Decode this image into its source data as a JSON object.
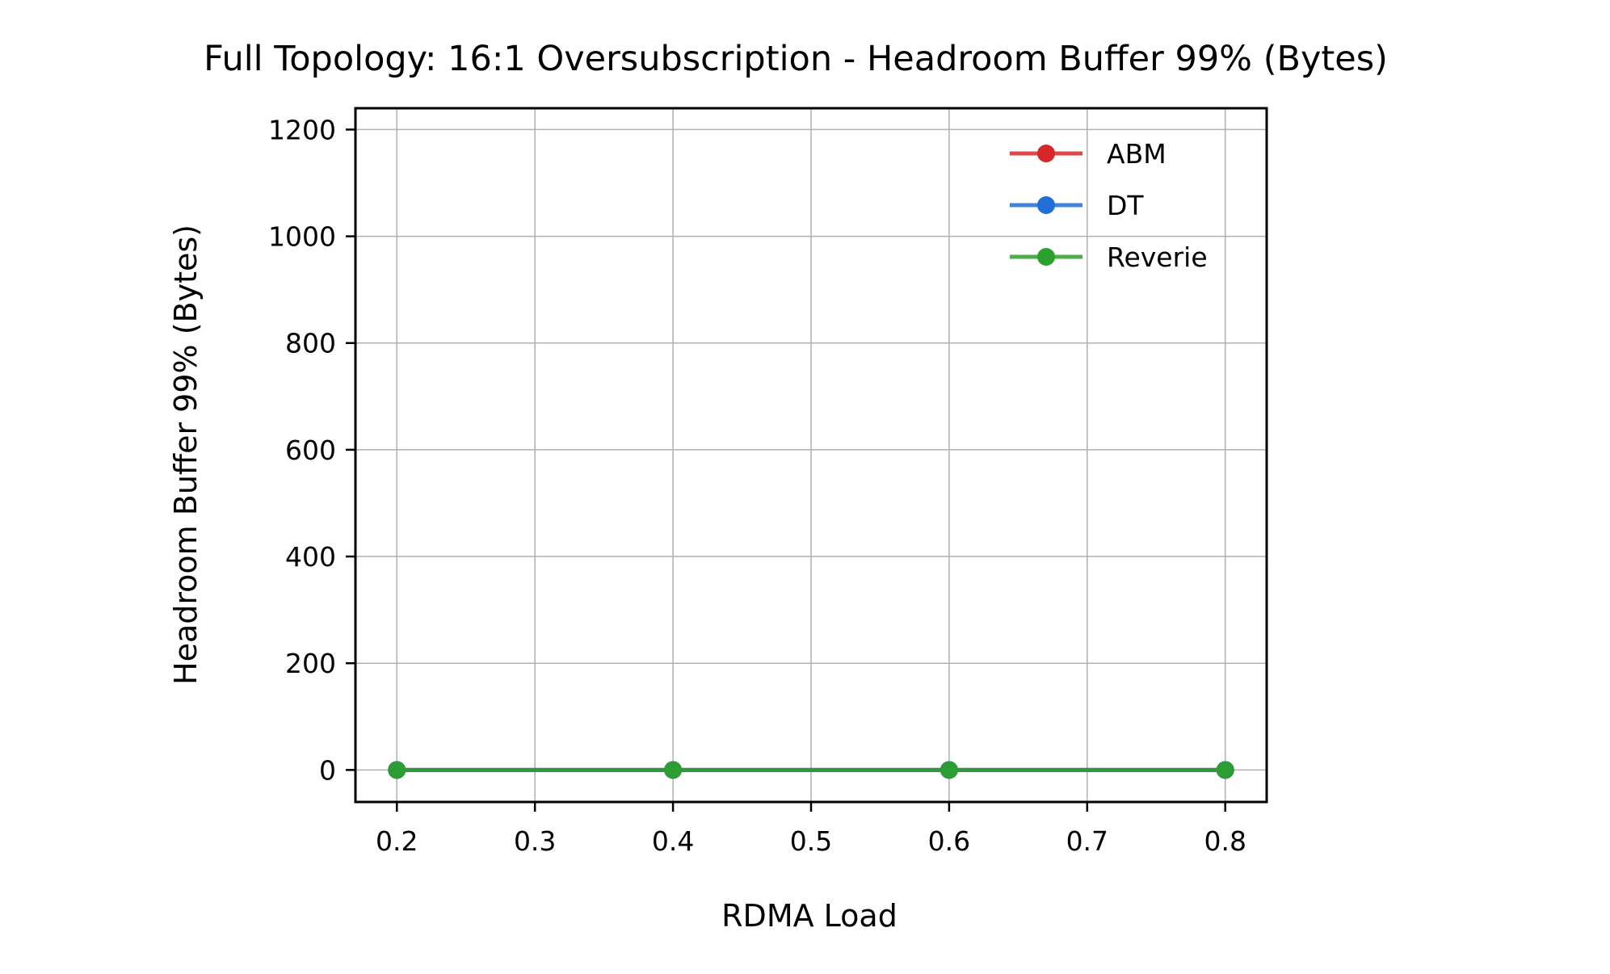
{
  "chart_data": {
    "type": "line",
    "title": "Full Topology: 16:1 Oversubscription - Headroom Buffer 99% (Bytes)",
    "xlabel": "RDMA Load",
    "ylabel": "Headroom Buffer 99% (Bytes)",
    "xlim": [
      0.17,
      0.83
    ],
    "ylim": [
      -60,
      1240
    ],
    "xticks": [
      0.2,
      0.3,
      0.4,
      0.5,
      0.6,
      0.7,
      0.8
    ],
    "xtick_labels": [
      "0.2",
      "0.3",
      "0.4",
      "0.5",
      "0.6",
      "0.7",
      "0.8"
    ],
    "yticks": [
      0,
      200,
      400,
      600,
      800,
      1000,
      1200
    ],
    "ytick_labels": [
      "0",
      "200",
      "400",
      "600",
      "800",
      "1000",
      "1200"
    ],
    "grid": true,
    "legend_position": "top-right",
    "x": [
      0.2,
      0.4,
      0.6,
      0.8
    ],
    "series": [
      {
        "name": "ABM",
        "color": "#d62728",
        "values": [
          0,
          0,
          0,
          0
        ]
      },
      {
        "name": "DT",
        "color": "#1f6fd6",
        "values": [
          0,
          0,
          0,
          0
        ]
      },
      {
        "name": "Reverie",
        "color": "#2ca02c",
        "values": [
          0,
          0,
          0,
          0
        ]
      }
    ],
    "marker": "circle"
  }
}
